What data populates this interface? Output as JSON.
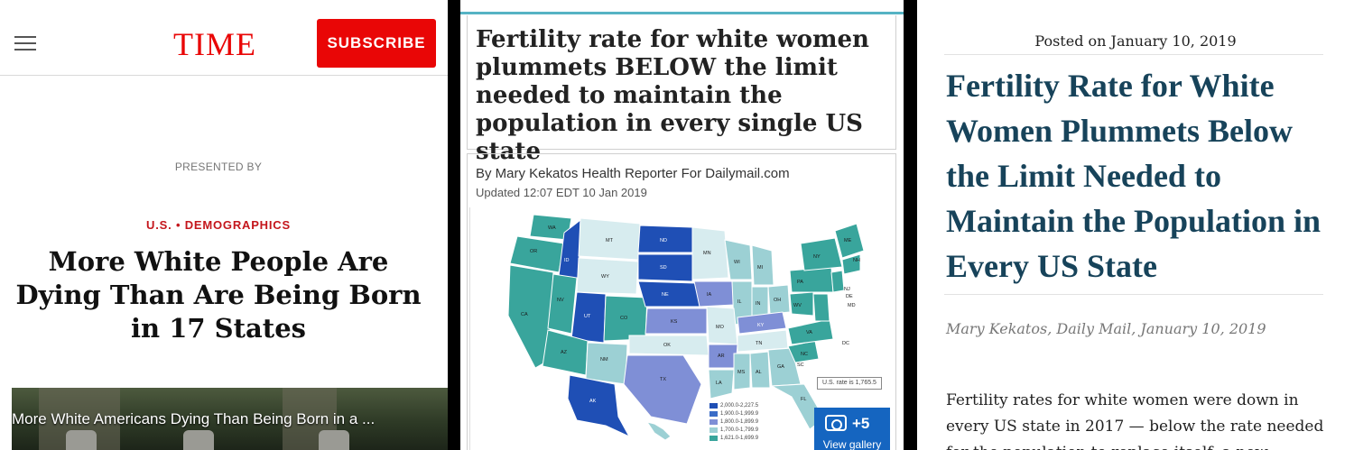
{
  "panel_time": {
    "logo": "TIME",
    "subscribe_label": "SUBSCRIBE",
    "presented_by": "PRESENTED BY",
    "kicker": "U.S. • DEMOGRAPHICS",
    "headline": "More White People Are Dying Than Are Being Born in 17 States",
    "video_title": "More White Americans Dying Than Being Born in a ..."
  },
  "panel_dailymail": {
    "headline": "Fertility rate for white women plummets BELOW the limit needed to maintain the population in every single US state",
    "byline": "By Mary Kekatos Health Reporter For Dailymail.com",
    "updated": "Updated 12:07 EDT 10 Jan 2019",
    "map_note": "U.S. rate is 1,765.5",
    "legend": [
      {
        "label": "2,000.0-2,227.5",
        "color": "#1f4fb5"
      },
      {
        "label": "1,900.0-1,999.9",
        "color": "#3a6cc7"
      },
      {
        "label": "1,800.0-1,899.9",
        "color": "#7f8fd6"
      },
      {
        "label": "1,700.0-1,799.9",
        "color": "#9cd0d4"
      },
      {
        "label": "1,621.0-1,699.9",
        "color": "#39a59c"
      }
    ],
    "gallery_count": "+5",
    "gallery_label": "View gallery",
    "state_labels": [
      "WA",
      "MT",
      "ND",
      "MN",
      "OR",
      "ID",
      "SD",
      "WY",
      "WI",
      "MI",
      "NY",
      "ME",
      "NE",
      "IA",
      "IL",
      "IN",
      "OH",
      "PA",
      "NV",
      "UT",
      "CO",
      "KS",
      "MO",
      "KY",
      "WV",
      "VA",
      "CA",
      "AZ",
      "NM",
      "OK",
      "AR",
      "TN",
      "NC",
      "TX",
      "LA",
      "MS",
      "AL",
      "GA",
      "SC",
      "FL",
      "AK",
      "NH",
      "NJ",
      "DE",
      "MD",
      "DC"
    ]
  },
  "panel_blog": {
    "posted": "Posted on January 10, 2019",
    "headline": "Fertility Rate for White Women Plummets Below the Limit Needed to Maintain the Population in Every US State",
    "author": "Mary Kekatos, Daily Mail, January 10, 2019",
    "body": "Fertility rates for white women were down in every US state in 2017 — below the rate needed for the population to replace itself, a new"
  },
  "colors": {
    "time_red": "#e90606",
    "kicker_red": "#c4161c",
    "blog_headline": "#17435a",
    "dm_accent": "#55b3c4",
    "gallery_blue": "#1565c0"
  },
  "icons": [
    "hamburger-menu-icon",
    "camera-icon"
  ]
}
